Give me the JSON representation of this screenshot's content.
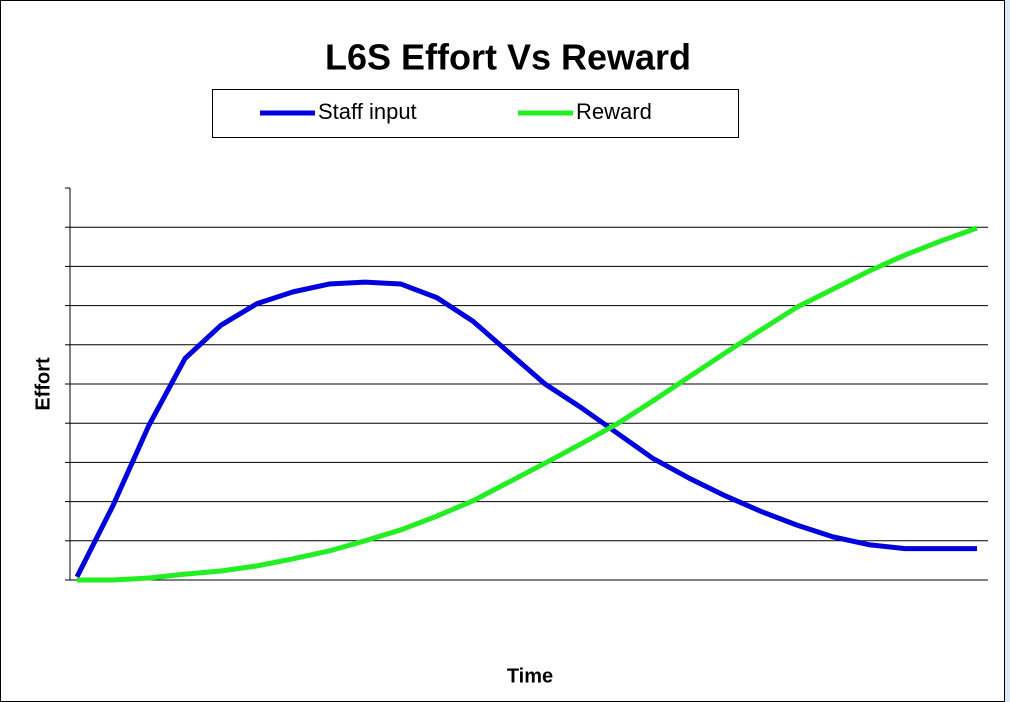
{
  "chart_data": {
    "type": "line",
    "title": "L6S Effort Vs Reward",
    "xlabel": "Time",
    "ylabel": "Effort",
    "categories": [
      null,
      null,
      null,
      null,
      null,
      null,
      null,
      null,
      null,
      null,
      null,
      null,
      null,
      null,
      null,
      null,
      null,
      null,
      null,
      null,
      null,
      null,
      null,
      null,
      null,
      null
    ],
    "series": [
      {
        "name": "Staff input",
        "color": "#0000dd",
        "values": [
          0.08,
          1.9,
          3.95,
          5.65,
          6.5,
          7.05,
          7.35,
          7.55,
          7.6,
          7.55,
          7.2,
          6.6,
          5.8,
          5.0,
          4.4,
          3.75,
          3.1,
          2.6,
          2.15,
          1.75,
          1.4,
          1.1,
          0.9,
          0.8,
          0.8,
          0.8
        ]
      },
      {
        "name": "Reward",
        "color": "#22ee22",
        "values": [
          0,
          0,
          0.05,
          0.15,
          0.23,
          0.36,
          0.54,
          0.74,
          1.0,
          1.28,
          1.63,
          2.02,
          2.5,
          2.98,
          3.47,
          3.98,
          4.57,
          5.18,
          5.79,
          6.38,
          6.96,
          7.42,
          7.88,
          8.29,
          8.65,
          8.98
        ]
      }
    ],
    "ylim": [
      0,
      10
    ],
    "yticks": [
      0,
      1,
      2,
      3,
      4,
      5,
      6,
      7,
      8,
      9,
      10
    ],
    "grid": true
  }
}
